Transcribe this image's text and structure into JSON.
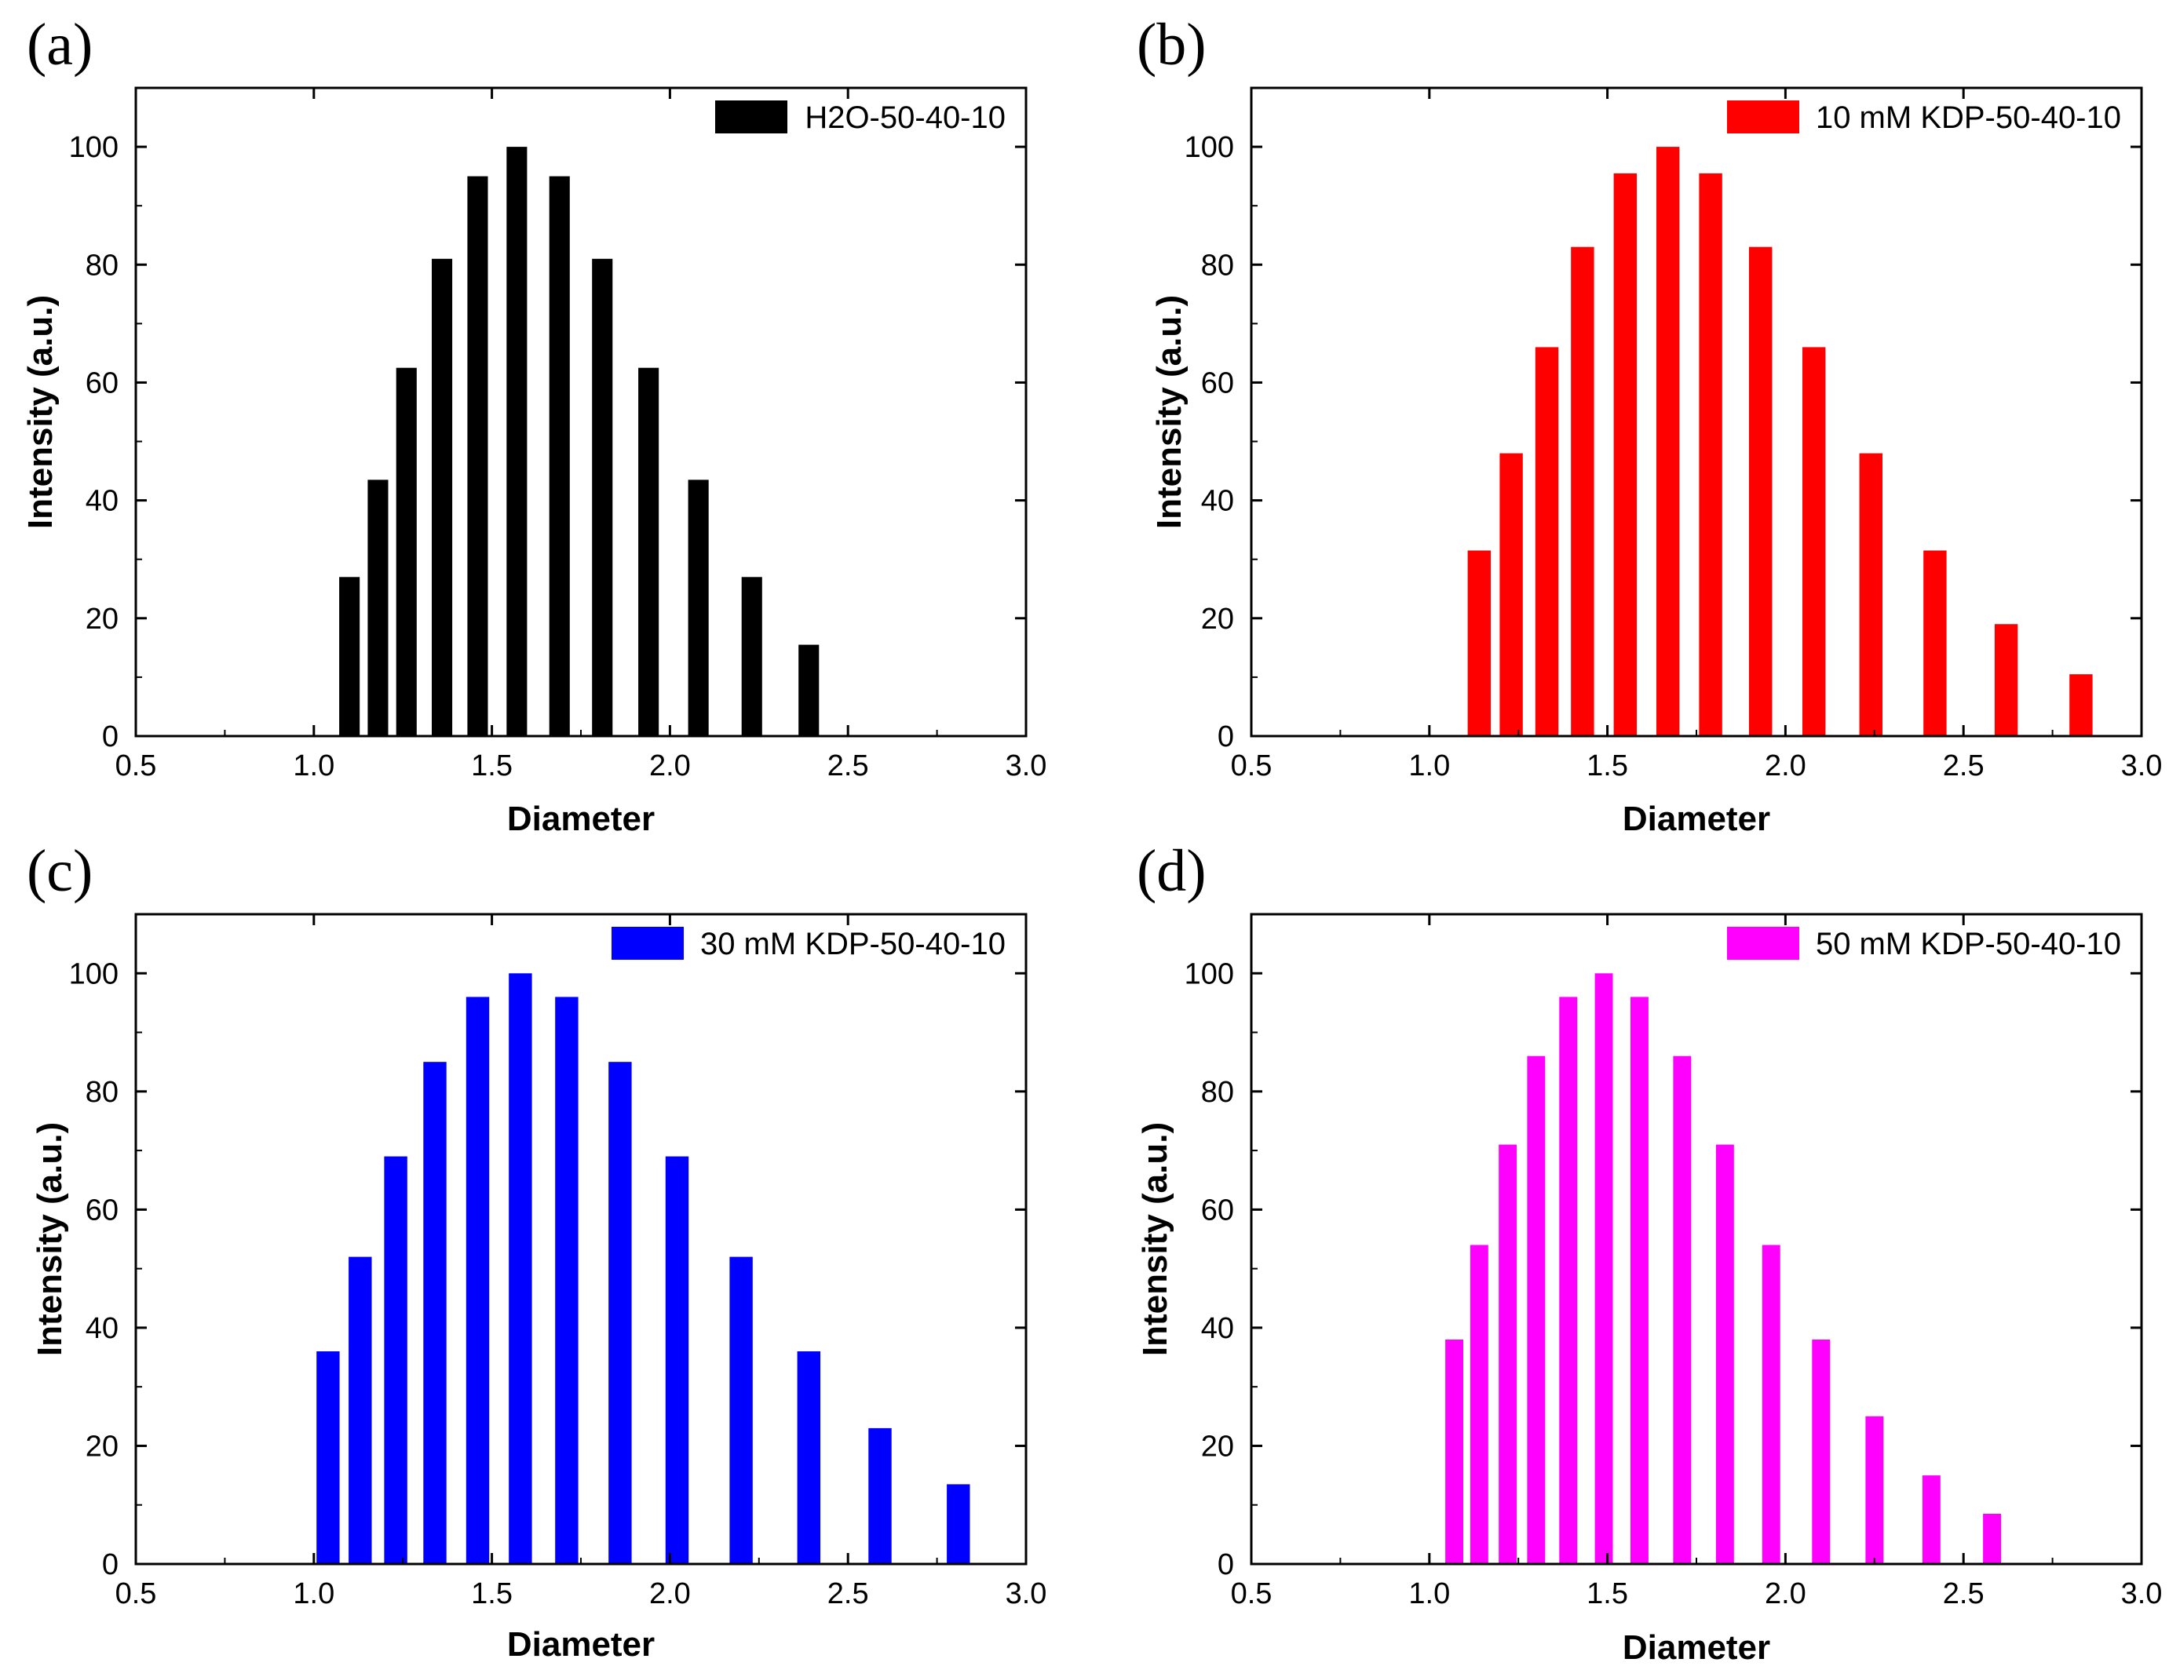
{
  "chart_data": [
    {
      "panel": "(a)",
      "type": "bar",
      "xlabel": "Diameter",
      "ylabel": "Intensity (a.u.)",
      "xlim": [
        0.5,
        3.0
      ],
      "ylim": [
        0,
        110
      ],
      "xticks": [
        "0.5",
        "1.0",
        "1.5",
        "2.0",
        "2.5",
        "3.0"
      ],
      "yticks": [
        "0",
        "20",
        "40",
        "60",
        "80",
        "100"
      ],
      "legend_position": "top-right",
      "color": "#000000",
      "series": [
        {
          "name": "H2O-50-40-10",
          "x": [
            1.1,
            1.18,
            1.26,
            1.36,
            1.46,
            1.57,
            1.69,
            1.81,
            1.94,
            2.08,
            2.23,
            2.39
          ],
          "values": [
            27,
            43.5,
            62.5,
            81,
            95,
            100,
            95,
            81,
            62.5,
            43.5,
            27,
            15.5
          ]
        }
      ]
    },
    {
      "panel": "(b)",
      "type": "bar",
      "xlabel": "Diameter",
      "ylabel": "Intensity (a.u.)",
      "xlim": [
        0.5,
        3.0
      ],
      "ylim": [
        0,
        110
      ],
      "xticks": [
        "0.5",
        "1.0",
        "1.5",
        "2.0",
        "2.5",
        "3.0"
      ],
      "yticks": [
        "0",
        "20",
        "40",
        "60",
        "80",
        "100"
      ],
      "legend_position": "top-right",
      "color": "#ff0000",
      "series": [
        {
          "name": "10 mM KDP-50-40-10",
          "x": [
            1.14,
            1.23,
            1.33,
            1.43,
            1.55,
            1.67,
            1.79,
            1.93,
            2.08,
            2.24,
            2.42,
            2.62,
            2.83
          ],
          "values": [
            31.5,
            48,
            66,
            83,
            95.5,
            100,
            95.5,
            83,
            66,
            48,
            31.5,
            19,
            10.5
          ]
        }
      ]
    },
    {
      "panel": "(c)",
      "type": "bar",
      "xlabel": "Diameter",
      "ylabel": "Intensity (a.u.)",
      "xlim": [
        0.5,
        3.0
      ],
      "ylim": [
        0,
        110
      ],
      "xticks": [
        "0.5",
        "1.0",
        "1.5",
        "2.0",
        "2.5",
        "3.0"
      ],
      "yticks": [
        "0",
        "20",
        "40",
        "60",
        "80",
        "100"
      ],
      "legend_position": "top-right",
      "color": "#0000ff",
      "series": [
        {
          "name": "30 mM KDP-50-40-10",
          "x": [
            1.04,
            1.13,
            1.23,
            1.34,
            1.46,
            1.58,
            1.71,
            1.86,
            2.02,
            2.2,
            2.39,
            2.59,
            2.81
          ],
          "values": [
            36,
            52,
            69,
            85,
            96,
            100,
            96,
            85,
            69,
            52,
            36,
            23,
            13.5
          ]
        }
      ]
    },
    {
      "panel": "(d)",
      "type": "bar",
      "xlabel": "Diameter",
      "ylabel": "Intensity (a.u.)",
      "xlim": [
        0.5,
        3.0
      ],
      "ylim": [
        0,
        110
      ],
      "xticks": [
        "0.5",
        "1.0",
        "1.5",
        "2.0",
        "2.5",
        "3.0"
      ],
      "yticks": [
        "0",
        "20",
        "40",
        "60",
        "80",
        "100"
      ],
      "legend_position": "top-right",
      "color": "#ff00ff",
      "series": [
        {
          "name": "50 mM KDP-50-40-10",
          "x": [
            1.07,
            1.14,
            1.22,
            1.3,
            1.39,
            1.49,
            1.59,
            1.71,
            1.83,
            1.96,
            2.1,
            2.25,
            2.41,
            2.58
          ],
          "values": [
            38,
            54,
            71,
            86,
            96,
            100,
            96,
            86,
            71,
            54,
            38,
            25,
            15,
            8.5
          ]
        }
      ]
    }
  ]
}
